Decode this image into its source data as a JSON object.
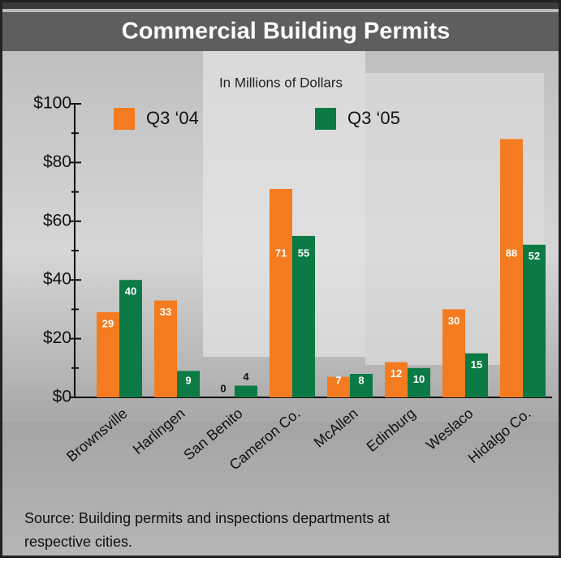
{
  "chart_data": {
    "type": "bar",
    "title": "Commercial Building Permits",
    "subtitle": "In Millions of Dollars",
    "categories": [
      "Brownsville",
      "Harlingen",
      "San Benito",
      "Cameron Co.",
      "McAllen",
      "Edinburg",
      "Weslaco",
      "Hidalgo Co."
    ],
    "series": [
      {
        "name": "Q3 ‘04",
        "color": "#f47b20",
        "values": [
          29,
          33,
          0,
          71,
          7,
          12,
          30,
          88
        ]
      },
      {
        "name": "Q3 ‘05",
        "color": "#0b7a45",
        "values": [
          40,
          9,
          4,
          55,
          8,
          10,
          15,
          52
        ]
      }
    ],
    "ylim": [
      0,
      100
    ],
    "yticks": [
      {
        "value": 0,
        "label": "$0"
      },
      {
        "value": 20,
        "label": "$20"
      },
      {
        "value": 40,
        "label": "$40"
      },
      {
        "value": 60,
        "label": "$60"
      },
      {
        "value": 80,
        "label": "$80"
      },
      {
        "value": 100,
        "label": "$100"
      }
    ],
    "yticks_minor": [
      10,
      30,
      50,
      70,
      90
    ],
    "source": [
      "Source: Building permits and inspections departments at",
      "respective cities."
    ]
  }
}
